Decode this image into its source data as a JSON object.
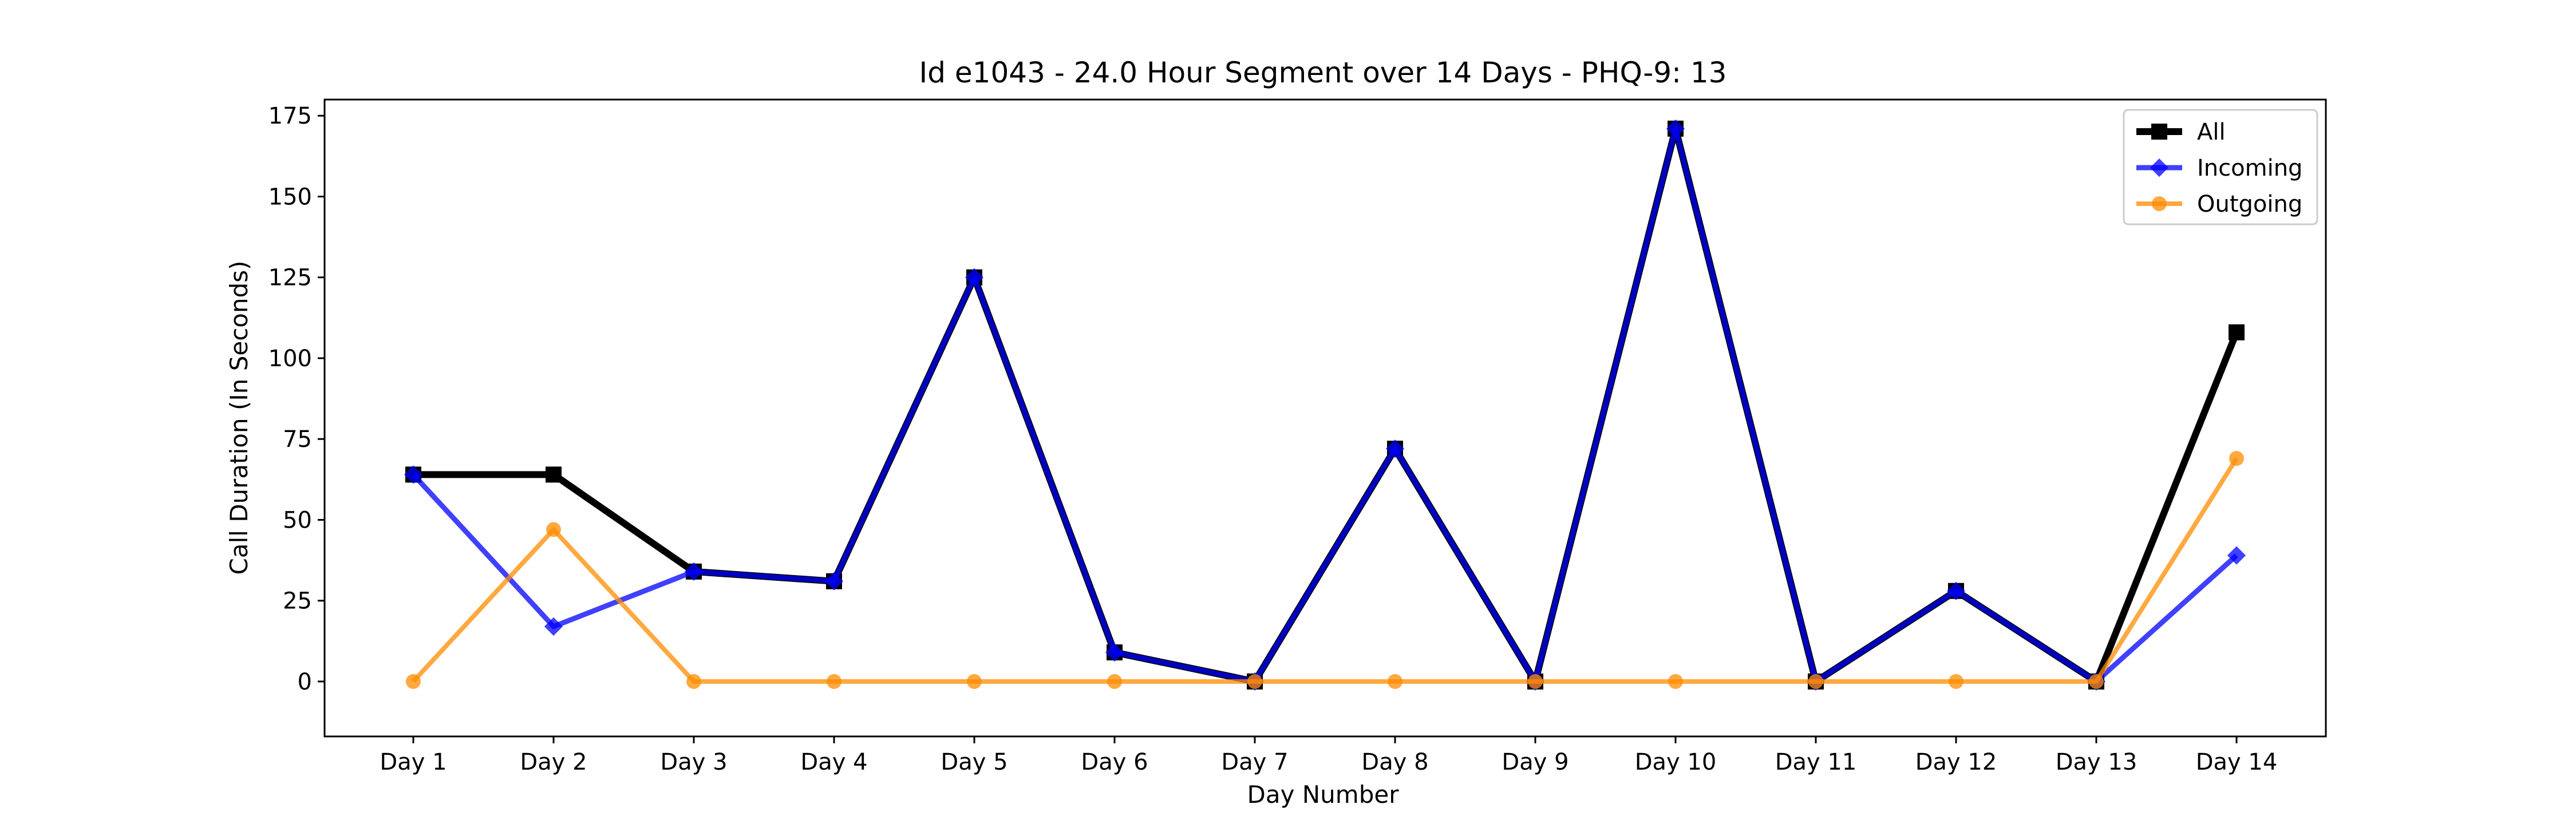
{
  "chart_data": {
    "type": "line",
    "title": "Id e1043 - 24.0 Hour Segment over 14 Days - PHQ-9: 13",
    "xlabel": "Day Number",
    "ylabel": "Call Duration (In Seconds)",
    "categories": [
      "Day 1",
      "Day 2",
      "Day 3",
      "Day 4",
      "Day 5",
      "Day 6",
      "Day 7",
      "Day 8",
      "Day 9",
      "Day 10",
      "Day 11",
      "Day 12",
      "Day 13",
      "Day 14"
    ],
    "ylim": [
      -17,
      180
    ],
    "yticks": [
      0,
      25,
      50,
      75,
      100,
      125,
      150,
      175
    ],
    "grid": false,
    "legend_position": "top-right",
    "series": [
      {
        "name": "All",
        "color": "#000000",
        "marker": "square",
        "values": [
          64,
          64,
          34,
          31,
          125,
          9,
          0,
          72,
          0,
          171,
          0,
          28,
          0,
          108
        ]
      },
      {
        "name": "Incoming",
        "color": "#0000ff",
        "marker": "diamond",
        "values": [
          64,
          17,
          34,
          31,
          125,
          9,
          0,
          72,
          0,
          171,
          0,
          28,
          0,
          39
        ]
      },
      {
        "name": "Outgoing",
        "color": "#ff8c00",
        "marker": "circle",
        "values": [
          0,
          47,
          0,
          0,
          0,
          0,
          0,
          0,
          0,
          0,
          0,
          0,
          0,
          69
        ]
      }
    ]
  }
}
